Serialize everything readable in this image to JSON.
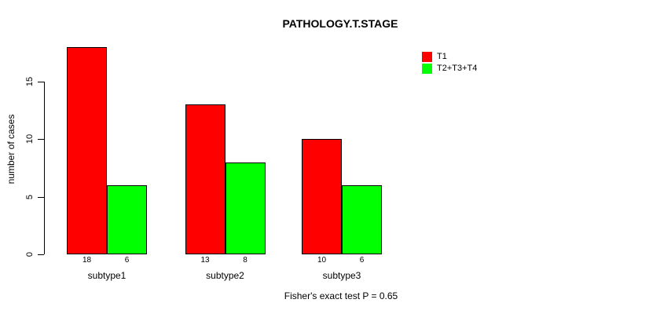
{
  "chart_data": {
    "type": "bar",
    "title": "PATHOLOGY.T.STAGE",
    "ylabel": "number of cases",
    "xlabel": "",
    "categories": [
      "subtype1",
      "subtype2",
      "subtype3"
    ],
    "series": [
      {
        "name": "T1",
        "color": "#ff0000",
        "values": [
          18,
          13,
          10
        ]
      },
      {
        "name": "T2+T3+T4",
        "color": "#00ff00",
        "values": [
          6,
          8,
          6
        ]
      }
    ],
    "yticks": [
      0,
      5,
      10,
      15
    ],
    "ylim": [
      0,
      15
    ],
    "grid": false,
    "legend_position": "top-right",
    "bar_border_color": "#000000",
    "background_color": "#ffffff",
    "annotation": "Fisher's exact test P = 0.65"
  }
}
